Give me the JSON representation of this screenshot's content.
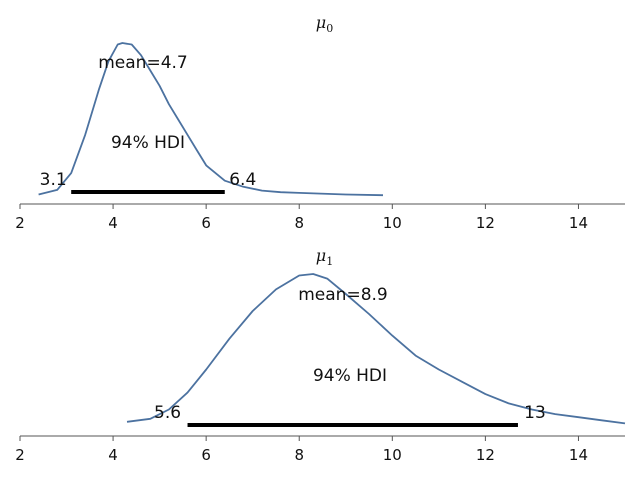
{
  "chart_data": [
    {
      "type": "line",
      "title": "μ",
      "title_sub": "0",
      "xlim": [
        2,
        15
      ],
      "xticks": [
        2,
        4,
        6,
        8,
        10,
        12,
        14
      ],
      "grid": false,
      "color": "#4c72a0",
      "x": [
        2.4,
        2.8,
        3.1,
        3.4,
        3.7,
        3.9,
        4.1,
        4.2,
        4.4,
        4.6,
        4.8,
        5.0,
        5.2,
        5.4,
        5.6,
        5.8,
        6.0,
        6.4,
        6.8,
        7.2,
        7.6,
        8.0,
        9.0,
        9.8
      ],
      "y": [
        0.01,
        0.04,
        0.15,
        0.4,
        0.7,
        0.88,
        0.99,
        1.0,
        0.99,
        0.92,
        0.82,
        0.72,
        0.6,
        0.5,
        0.4,
        0.3,
        0.2,
        0.1,
        0.06,
        0.035,
        0.025,
        0.02,
        0.01,
        0.005
      ],
      "mean_label": "mean=4.7",
      "hdi_label": "94% HDI",
      "hdi": [
        3.1,
        6.4
      ],
      "hdi_low_label": "3.1",
      "hdi_high_label": "6.4"
    },
    {
      "type": "line",
      "title": "μ",
      "title_sub": "1",
      "xlim": [
        2,
        15
      ],
      "xticks": [
        2,
        4,
        6,
        8,
        10,
        12,
        14
      ],
      "grid": false,
      "color": "#4c72a0",
      "x": [
        4.3,
        4.8,
        5.2,
        5.6,
        6.0,
        6.5,
        7.0,
        7.5,
        8.0,
        8.3,
        8.6,
        9.0,
        9.5,
        10.0,
        10.5,
        11.0,
        11.5,
        12.0,
        12.5,
        13.0,
        13.5,
        14.0,
        14.5,
        15.0
      ],
      "y": [
        0.04,
        0.06,
        0.12,
        0.23,
        0.38,
        0.58,
        0.76,
        0.9,
        0.99,
        1.0,
        0.97,
        0.87,
        0.74,
        0.6,
        0.47,
        0.38,
        0.3,
        0.22,
        0.16,
        0.12,
        0.09,
        0.07,
        0.05,
        0.03
      ],
      "mean_label": "mean=8.9",
      "hdi_label": "94% HDI",
      "hdi": [
        5.6,
        12.7
      ],
      "hdi_low_label": "5.6",
      "hdi_high_label": "13"
    }
  ]
}
